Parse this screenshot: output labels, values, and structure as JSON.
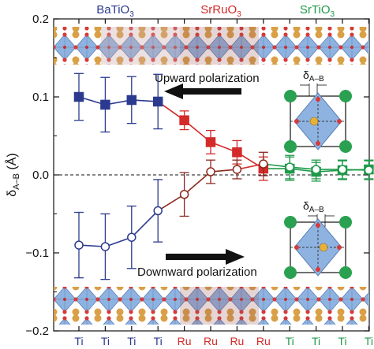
{
  "chart_data": {
    "type": "line",
    "ylabel_base": "δ",
    "ylabel_sub": "A–B",
    "ylabel_unit": " (Å)",
    "ylim": [
      -0.2,
      0.2
    ],
    "y_ticks": [
      "0.2",
      "0.1",
      "0.0",
      "−0.1",
      "−0.2"
    ],
    "y_tick_values": [
      0.2,
      0.1,
      0.0,
      -0.1,
      -0.2
    ],
    "categories": [
      "Ti",
      "Ti",
      "Ti",
      "Ti",
      "Ru",
      "Ru",
      "Ru",
      "Ru",
      "Ti",
      "Ti",
      "Ti",
      "Ti"
    ],
    "segment_colors": [
      "#2b3a8f",
      "#2b3a8f",
      "#2b3a8f",
      "#2b3a8f",
      "#d42a2a",
      "#d42a2a",
      "#d42a2a",
      "#d42a2a",
      "#1f9a4a",
      "#1f9a4a",
      "#1f9a4a",
      "#1f9a4a"
    ],
    "brown_color": "#8b2a1e",
    "materials": [
      {
        "base": "BaTiO",
        "sub": "3",
        "color": "#2b3a8f"
      },
      {
        "base": "SrRuO",
        "sub": "3",
        "color": "#d42a2a"
      },
      {
        "base": "SrTiO",
        "sub": "3",
        "color": "#1f9a4a"
      }
    ],
    "series": [
      {
        "values": [
          0.1,
          0.09,
          0.096,
          0.094,
          0.07,
          0.042,
          0.029,
          0.008,
          0.008,
          0.004,
          0.006,
          0.007
        ],
        "errors": [
          0.03,
          0.035,
          0.03,
          0.035,
          0.012,
          0.015,
          0.015,
          0.015,
          0.015,
          0.012,
          0.012,
          0.012
        ],
        "marker": "square",
        "fill": "filled"
      },
      {
        "values": [
          -0.09,
          -0.092,
          -0.08,
          -0.046,
          -0.025,
          0.004,
          0.007,
          0.014,
          0.01,
          0.007,
          0.007,
          0.006
        ],
        "errors": [
          0.042,
          0.042,
          0.04,
          0.04,
          0.028,
          0.015,
          0.012,
          0.015,
          0.015,
          0.012,
          0.012,
          0.012
        ],
        "marker": "circle",
        "fill": "open"
      }
    ],
    "annotations": {
      "upward": "Upward polarization",
      "downward": "Downward polarization",
      "delta_base": "δ",
      "delta_sub": "A–B"
    },
    "zero_line": "dashed"
  }
}
